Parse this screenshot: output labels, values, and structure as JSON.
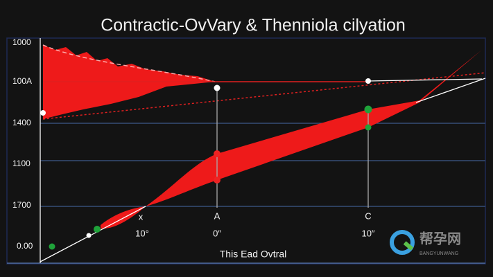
{
  "chart_data": {
    "type": "line",
    "title": "Contractic-OvVary & Thenniola cilyation",
    "y_tick_labels": [
      "1000",
      "100A",
      "1400",
      "1100",
      "1700",
      "0.00"
    ],
    "x_tick_labels": [
      "10°",
      "A",
      "0″",
      "C",
      "10″"
    ],
    "x_tick_marks": [
      "x"
    ],
    "xlabel": "This Ead Ovtral",
    "watermark": {
      "title": "帮孕网",
      "subtitle": "BANGYUNWANG"
    }
  }
}
